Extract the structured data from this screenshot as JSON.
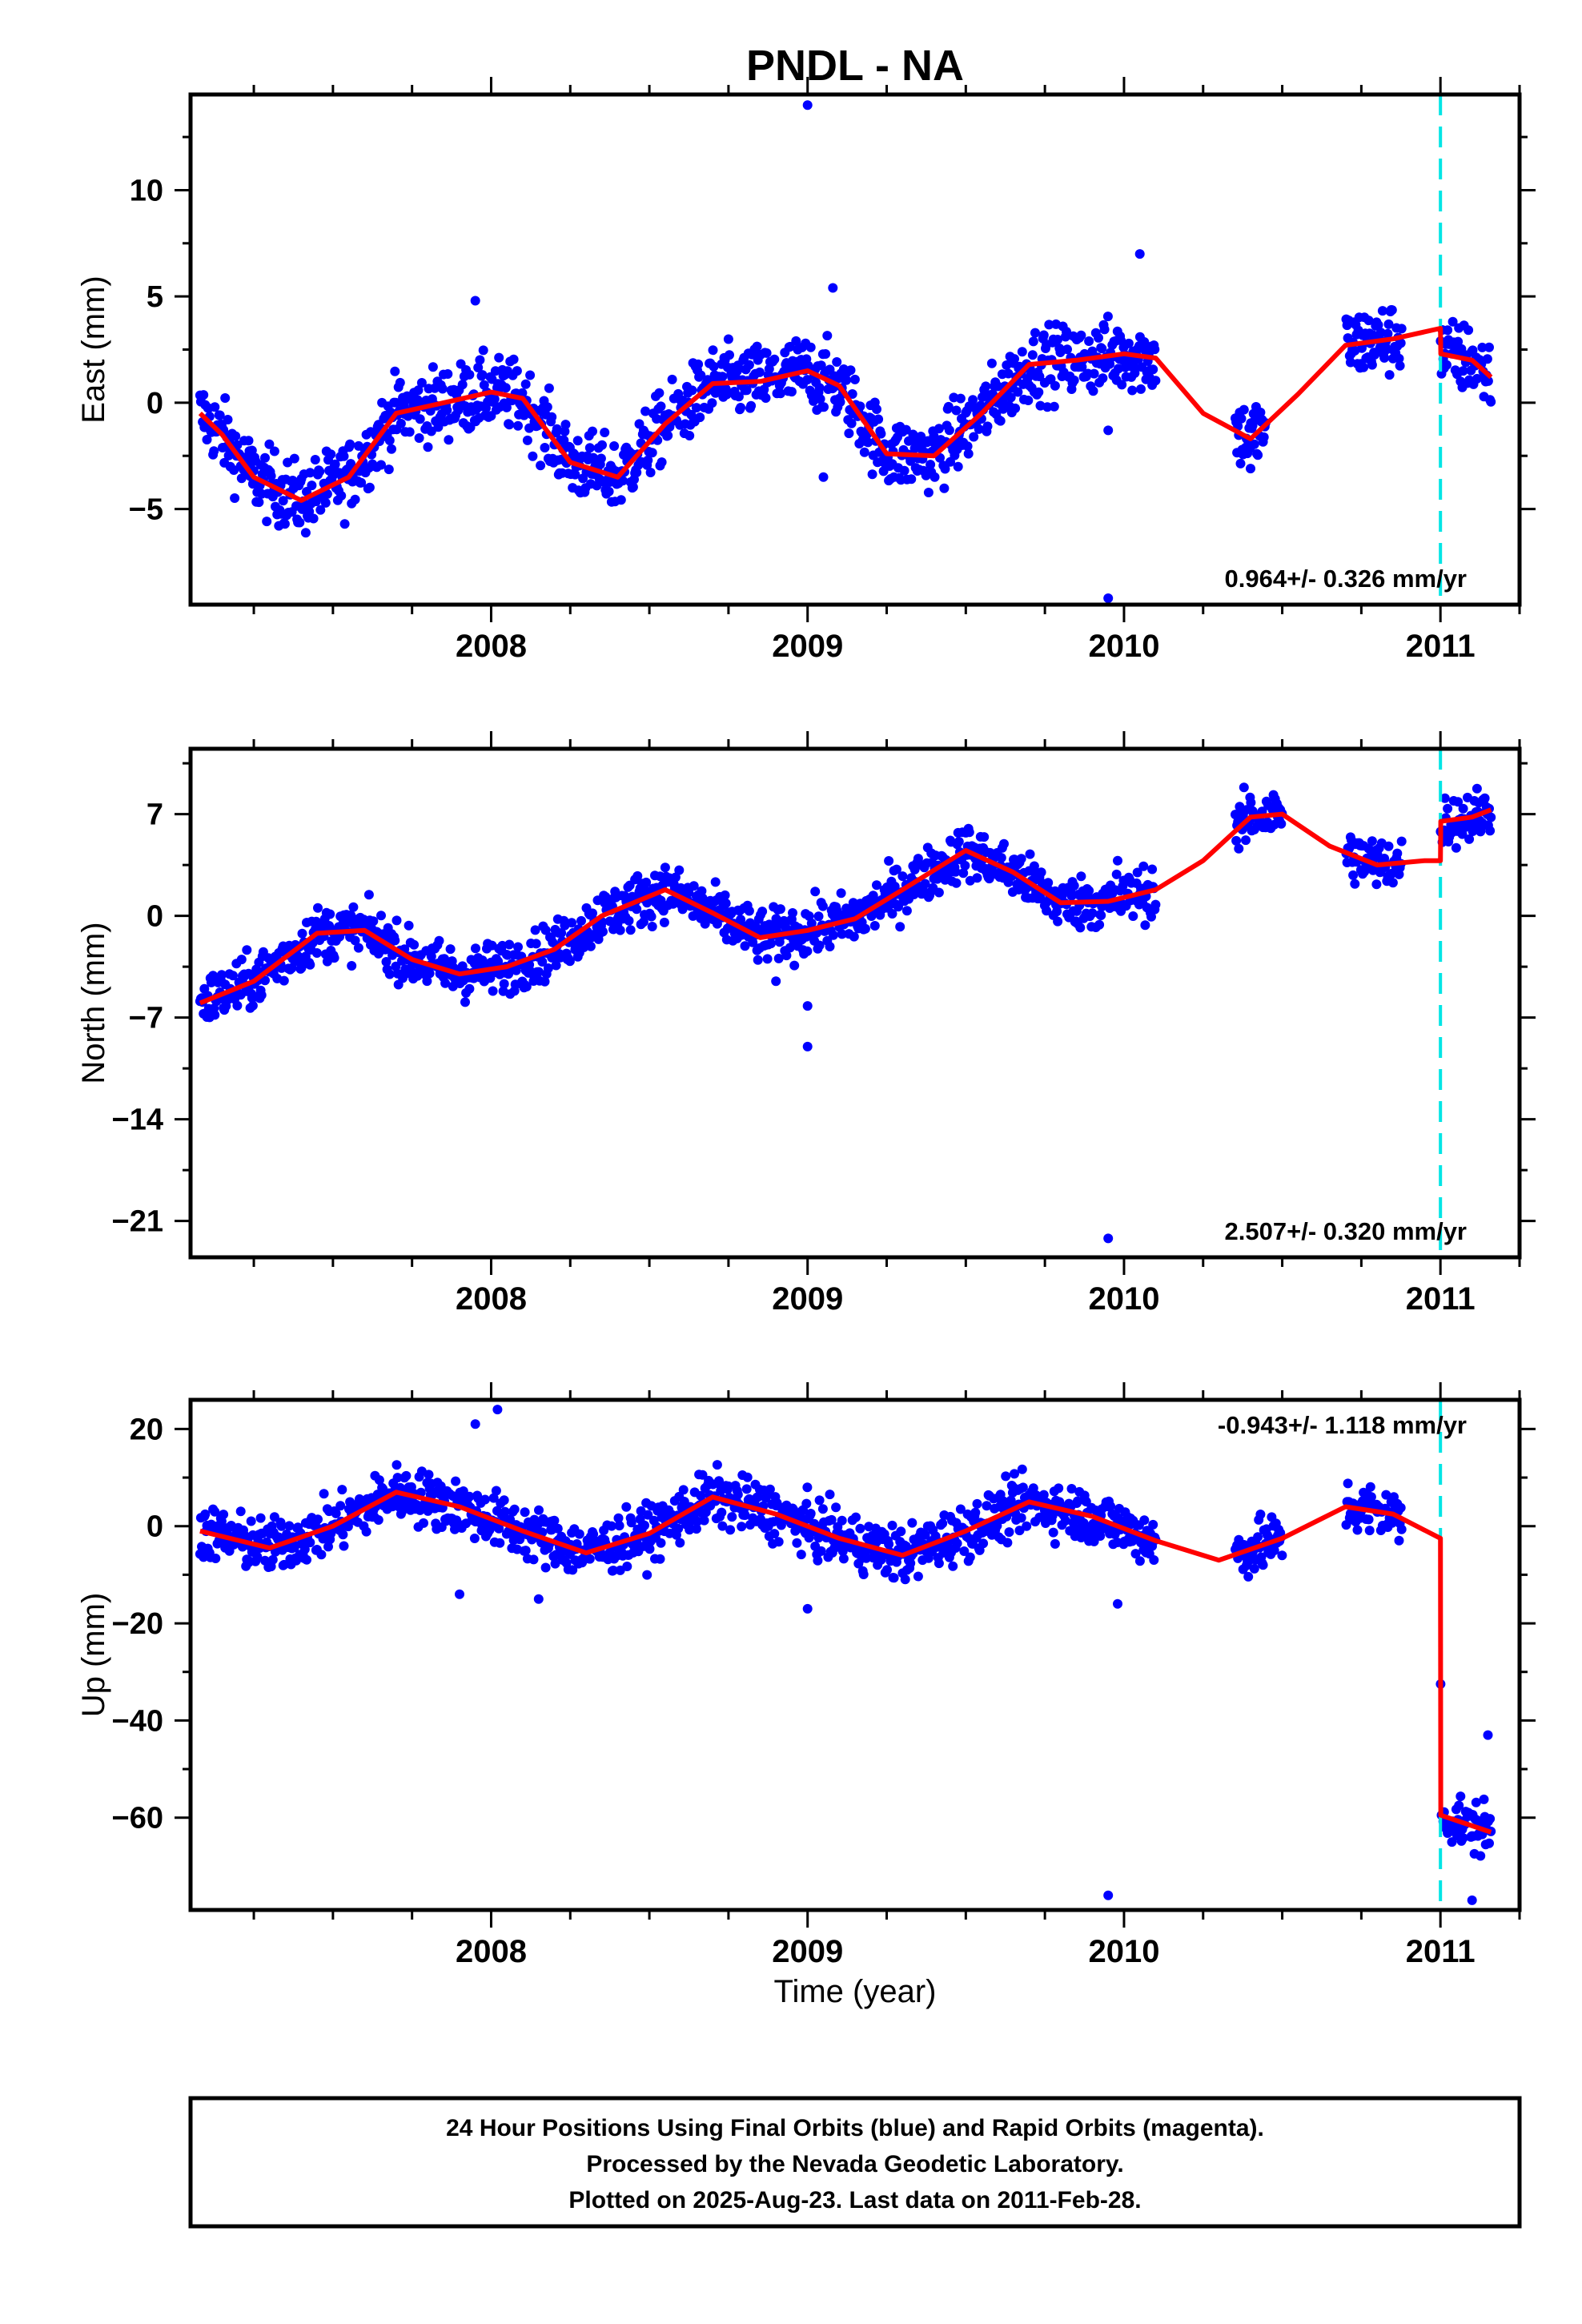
{
  "title": "PNDL - NA",
  "xlabel": "Time (year)",
  "colors": {
    "points": "#0000ff",
    "model": "#ff0000",
    "event_line": "#00e5e5",
    "frame": "#000000"
  },
  "footer": {
    "lines": [
      "24 Hour Positions Using Final Orbits (blue) and Rapid Orbits (magenta).",
      "Processed by the Nevada Geodetic Laboratory.",
      "Plotted on 2025-Aug-23. Last data on 2011-Feb-28."
    ]
  },
  "chart_data": [
    {
      "type": "scatter",
      "panel": "east",
      "ylabel": "East (mm)",
      "rate_label": "0.964+/- 0.326 mm/yr",
      "xlim": [
        2007.05,
        2011.25
      ],
      "ylim": [
        -9.5,
        14.5
      ],
      "x_ticks": [
        2008,
        2009,
        2010,
        2011
      ],
      "y_ticks": [
        -5,
        0,
        5,
        10
      ],
      "data_start": 2007.08,
      "data_end": 2011.16,
      "gaps": [
        [
          2010.1,
          2010.35
        ],
        [
          2010.45,
          2010.7
        ],
        [
          2010.88,
          2011.0
        ]
      ],
      "event": 2011.0,
      "model": {
        "x": [
          2007.08,
          2007.15,
          2007.25,
          2007.4,
          2007.55,
          2007.7,
          2007.85,
          2008.0,
          2008.1,
          2008.25,
          2008.4,
          2008.55,
          2008.7,
          2008.85,
          2009.0,
          2009.1,
          2009.25,
          2009.4,
          2009.55,
          2009.7,
          2009.85,
          2010.0,
          2010.1,
          2010.25,
          2010.4,
          2010.55,
          2010.7,
          2010.85,
          2011.0,
          2011.001,
          2011.1,
          2011.16
        ],
        "y": [
          -0.5,
          -1.5,
          -3.5,
          -4.6,
          -3.5,
          -0.5,
          0.0,
          0.5,
          0.2,
          -2.8,
          -3.5,
          -1.0,
          0.9,
          1.0,
          1.5,
          0.8,
          -2.4,
          -2.5,
          -0.5,
          1.8,
          2.0,
          2.3,
          2.1,
          -0.5,
          -1.7,
          0.4,
          2.7,
          3.0,
          3.5,
          2.3,
          2.0,
          1.2
        ]
      },
      "noise": 1.2,
      "outliers": [
        [
          2009.0,
          14.0
        ],
        [
          2010.05,
          7.0
        ],
        [
          2009.95,
          -9.2
        ],
        [
          2009.05,
          -3.5
        ],
        [
          2009.95,
          -1.3
        ],
        [
          2007.95,
          4.8
        ],
        [
          2009.08,
          5.4
        ],
        [
          2010.4,
          -3.1
        ]
      ]
    },
    {
      "type": "scatter",
      "panel": "north",
      "ylabel": "North (mm)",
      "rate_label": "2.507+/- 0.320 mm/yr",
      "xlim": [
        2007.05,
        2011.25
      ],
      "ylim": [
        -23.5,
        11.5
      ],
      "x_ticks": [
        2008,
        2009,
        2010,
        2011
      ],
      "y_ticks": [
        -21,
        -14,
        -7,
        0,
        7
      ],
      "data_start": 2007.08,
      "data_end": 2011.16,
      "gaps": [
        [
          2010.1,
          2010.35
        ],
        [
          2010.5,
          2010.7
        ],
        [
          2010.88,
          2011.0
        ]
      ],
      "event": 2011.0,
      "model": {
        "x": [
          2007.08,
          2007.25,
          2007.45,
          2007.6,
          2007.75,
          2007.9,
          2008.05,
          2008.2,
          2008.35,
          2008.55,
          2008.7,
          2008.85,
          2009.0,
          2009.15,
          2009.3,
          2009.5,
          2009.65,
          2009.8,
          2009.95,
          2010.1,
          2010.25,
          2010.4,
          2010.5,
          2010.65,
          2010.8,
          2010.95,
          2011.0,
          2011.001,
          2011.1,
          2011.16
        ],
        "y": [
          -6.0,
          -4.5,
          -1.2,
          -1.0,
          -3.0,
          -4.0,
          -3.5,
          -2.3,
          0.0,
          1.8,
          0.2,
          -1.5,
          -1.0,
          -0.2,
          1.8,
          4.5,
          3.0,
          0.9,
          1.0,
          1.8,
          3.8,
          6.8,
          7.0,
          4.8,
          3.5,
          3.8,
          3.8,
          6.5,
          6.8,
          7.3
        ]
      },
      "noise": 1.3,
      "outliers": [
        [
          2009.0,
          -9.0
        ],
        [
          2009.0,
          -6.2
        ],
        [
          2009.95,
          -22.2
        ],
        [
          2008.9,
          -4.5
        ],
        [
          2009.98,
          3.8
        ]
      ]
    },
    {
      "type": "scatter",
      "panel": "up",
      "ylabel": "Up (mm)",
      "rate_label": "-0.943+/- 1.118 mm/yr",
      "xlim": [
        2007.05,
        2011.25
      ],
      "ylim": [
        -79,
        26
      ],
      "x_ticks": [
        2008,
        2009,
        2010,
        2011
      ],
      "y_ticks": [
        -60,
        -40,
        -20,
        0,
        20
      ],
      "data_start": 2007.08,
      "data_end": 2011.16,
      "gaps": [
        [
          2010.1,
          2010.35
        ],
        [
          2010.5,
          2010.7
        ],
        [
          2010.88,
          2011.0
        ]
      ],
      "event": 2011.0,
      "model": {
        "x": [
          2007.08,
          2007.3,
          2007.5,
          2007.7,
          2007.9,
          2008.1,
          2008.3,
          2008.5,
          2008.7,
          2008.9,
          2009.1,
          2009.3,
          2009.5,
          2009.7,
          2009.9,
          2010.1,
          2010.3,
          2010.5,
          2010.7,
          2010.85,
          2011.0,
          2011.001,
          2011.16
        ],
        "y": [
          -1.0,
          -4.5,
          0.0,
          7.0,
          4.0,
          -1.0,
          -5.5,
          -1.5,
          6.0,
          2.5,
          -2.5,
          -6.0,
          -1.0,
          5.0,
          2.0,
          -3.0,
          -7.0,
          -2.5,
          4.0,
          2.5,
          -2.5,
          -59.5,
          -63.0
        ]
      },
      "noise": 4.0,
      "outliers": [
        [
          2007.95,
          21.0
        ],
        [
          2008.02,
          24.0
        ],
        [
          2009.95,
          -76.0
        ],
        [
          2009.0,
          -17.0
        ],
        [
          2009.98,
          -16.0
        ],
        [
          2008.15,
          -15.0
        ],
        [
          2011.1,
          -77.0
        ],
        [
          2011.15,
          -43.0
        ],
        [
          2007.9,
          -14.0
        ]
      ]
    }
  ]
}
